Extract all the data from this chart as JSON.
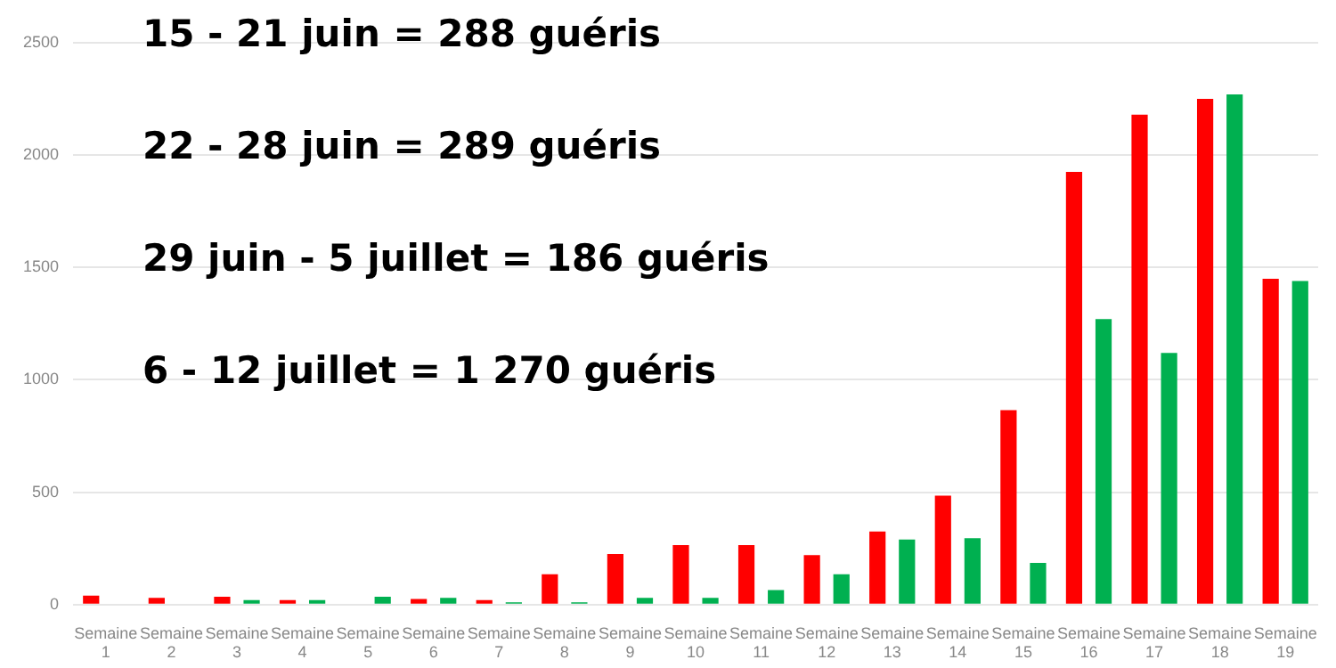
{
  "chart_data": {
    "type": "bar",
    "categories": [
      "Semaine 1",
      "Semaine 2",
      "Semaine 3",
      "Semaine 4",
      "Semaine 5",
      "Semaine 6",
      "Semaine 7",
      "Semaine 8",
      "Semaine 9",
      "Semaine 10",
      "Semaine 11",
      "Semaine 12",
      "Semaine 13",
      "Semaine 14",
      "Semaine 15",
      "Semaine 16",
      "Semaine 17",
      "Semaine 18",
      "Semaine 19"
    ],
    "series": [
      {
        "color": "#ff0000",
        "values": [
          40,
          30,
          35,
          20,
          0,
          25,
          20,
          135,
          225,
          265,
          265,
          220,
          325,
          485,
          865,
          1925,
          2180,
          2250,
          1450
        ]
      },
      {
        "color": "#00b050",
        "values": [
          0,
          0,
          20,
          20,
          35,
          30,
          10,
          10,
          30,
          30,
          65,
          135,
          290,
          295,
          185,
          1270,
          1120,
          2270,
          1440
        ]
      }
    ],
    "ylim": [
      0,
      2500
    ],
    "yticks": [
      0,
      500,
      1000,
      1500,
      2000,
      2500
    ],
    "grid": "y",
    "legend": false,
    "annotations": [
      "15 - 21 juin = 288 guéris",
      "22 - 28 juin = 289 guéris",
      "29 juin - 5 juillet = 186 guéris",
      "6 - 12 juillet = 1 270 guéris"
    ]
  }
}
